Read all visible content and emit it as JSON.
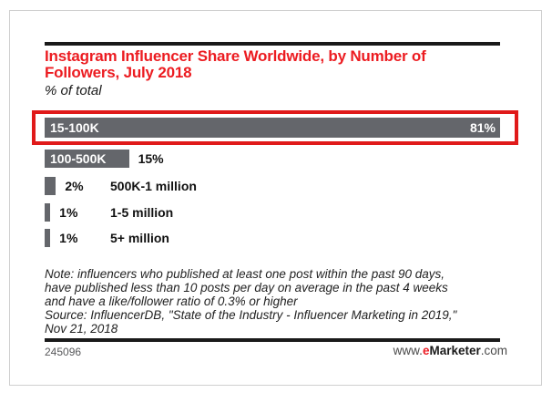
{
  "header": {
    "title": "Instagram Influencer Share Worldwide, by Number of\nFollowers, July 2018",
    "subtitle": "% of total"
  },
  "chart_data": {
    "type": "bar",
    "orientation": "horizontal",
    "title": "Instagram Influencer Share Worldwide, by Number of Followers, July 2018",
    "subtitle": "% of total",
    "categories": [
      "15-100K",
      "100-500K",
      "500K-1 million",
      "1-5 million",
      "5+ million"
    ],
    "values": [
      81,
      15,
      2,
      1,
      1
    ],
    "value_labels": [
      "81%",
      "15%",
      "2%",
      "1%",
      "1%"
    ],
    "xlim": [
      0,
      81
    ],
    "legend": "none",
    "grid": false,
    "highlighted_category": "15-100K",
    "rows": [
      {
        "category": "15-100K",
        "value": 81,
        "display": "81%",
        "label_inside": true,
        "value_inside": true,
        "highlighted": true
      },
      {
        "category": "100-500K",
        "value": 15,
        "display": "15%",
        "label_inside": true,
        "value_inside": false,
        "highlighted": false
      },
      {
        "category": "500K-1 million",
        "value": 2,
        "display": "2%",
        "label_inside": false,
        "value_inside": false,
        "highlighted": false
      },
      {
        "category": "1-5 million",
        "value": 1,
        "display": "1%",
        "label_inside": false,
        "value_inside": false,
        "highlighted": false
      },
      {
        "category": "5+ million",
        "value": 1,
        "display": "1%",
        "label_inside": false,
        "value_inside": false,
        "highlighted": false
      }
    ]
  },
  "note": {
    "text": "Note: influencers who published at least one post within the past 90 days,\nhave published less than 10 posts per day on average in the past 4 weeks\nand have a like/follower ratio of 0.3% or higher\nSource: InfluencerDB, \"State of the Industry - Influencer Marketing in 2019,\"\nNov 21, 2018"
  },
  "footer": {
    "chart_id": "245096",
    "logo_parts": {
      "www": "www.",
      "e": "e",
      "marketer": "Marketer",
      "com": ".com"
    }
  },
  "colors": {
    "bar_gray": "#64666b",
    "title_red": "#ec1c21",
    "highlight_box_red": "#e01a1a",
    "rule_black": "#1a1a1a",
    "logo_e_red": "#ed1c24",
    "footer_gray": "#58595b",
    "page_border": "#cfcfcf"
  }
}
